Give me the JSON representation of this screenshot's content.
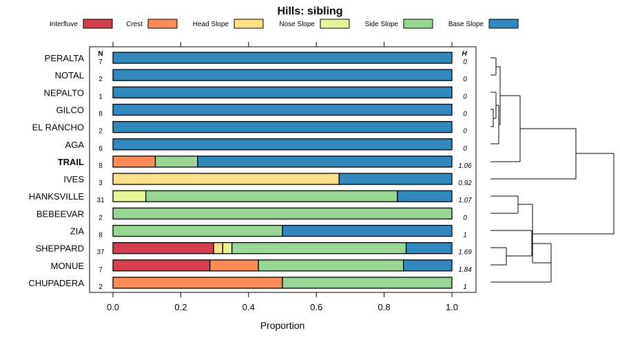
{
  "chart_data": {
    "type": "bar",
    "subtype": "stacked-horizontal-proportion",
    "title": "Hills: sibling",
    "xlabel": "Proportion",
    "xlim": [
      0,
      1
    ],
    "xticks": [
      "0.0",
      "0.2",
      "0.4",
      "0.6",
      "0.8",
      "1.0"
    ],
    "n_header": "N",
    "h_header": "H",
    "legend": [
      {
        "name": "Interfluve",
        "color": "#D53E4F"
      },
      {
        "name": "Crest",
        "color": "#FC8D59"
      },
      {
        "name": "Head Slope",
        "color": "#FEE08B"
      },
      {
        "name": "Nose Slope",
        "color": "#E6F598"
      },
      {
        "name": "Side Slope",
        "color": "#99D594"
      },
      {
        "name": "Base Slope",
        "color": "#3288BD"
      }
    ],
    "categories": [
      "PERALTA",
      "NOTAL",
      "NEPALTO",
      "GILCO",
      "EL RANCHO",
      "AGA",
      "TRAIL",
      "IVES",
      "HANKSVILLE",
      "BEBEEVAR",
      "ZIA",
      "SHEPPARD",
      "MONUE",
      "CHUPADERA"
    ],
    "highlight": "TRAIL",
    "n": [
      "7",
      "2",
      "1",
      "8",
      "2",
      "6",
      "8",
      "3",
      "31",
      "2",
      "8",
      "37",
      "7",
      "2"
    ],
    "h": [
      "0",
      "0",
      "0",
      "0",
      "0",
      "0",
      "1.06",
      "0.92",
      "1.07",
      "0",
      "1",
      "1.69",
      "1.84",
      "1"
    ],
    "series": [
      {
        "name": "Interfluve",
        "values": [
          0,
          0,
          0,
          0,
          0,
          0,
          0,
          0,
          0,
          0,
          0,
          0.297,
          0.286,
          0
        ]
      },
      {
        "name": "Crest",
        "values": [
          0,
          0,
          0,
          0,
          0,
          0,
          0.125,
          0,
          0,
          0,
          0,
          0,
          0.143,
          0.5
        ]
      },
      {
        "name": "Head Slope",
        "values": [
          0,
          0,
          0,
          0,
          0,
          0,
          0,
          0.667,
          0,
          0,
          0,
          0.027,
          0,
          0
        ]
      },
      {
        "name": "Nose Slope",
        "values": [
          0,
          0,
          0,
          0,
          0,
          0,
          0,
          0,
          0.097,
          0,
          0,
          0.027,
          0,
          0
        ]
      },
      {
        "name": "Side Slope",
        "values": [
          0,
          0,
          0,
          0,
          0,
          0,
          0.125,
          0,
          0.742,
          1.0,
          0.5,
          0.514,
          0.428,
          0.5
        ]
      },
      {
        "name": "Base Slope",
        "values": [
          1.0,
          1.0,
          1.0,
          1.0,
          1.0,
          1.0,
          0.75,
          0.333,
          0.161,
          0,
          0.5,
          0.135,
          0.143,
          0
        ]
      }
    ]
  }
}
